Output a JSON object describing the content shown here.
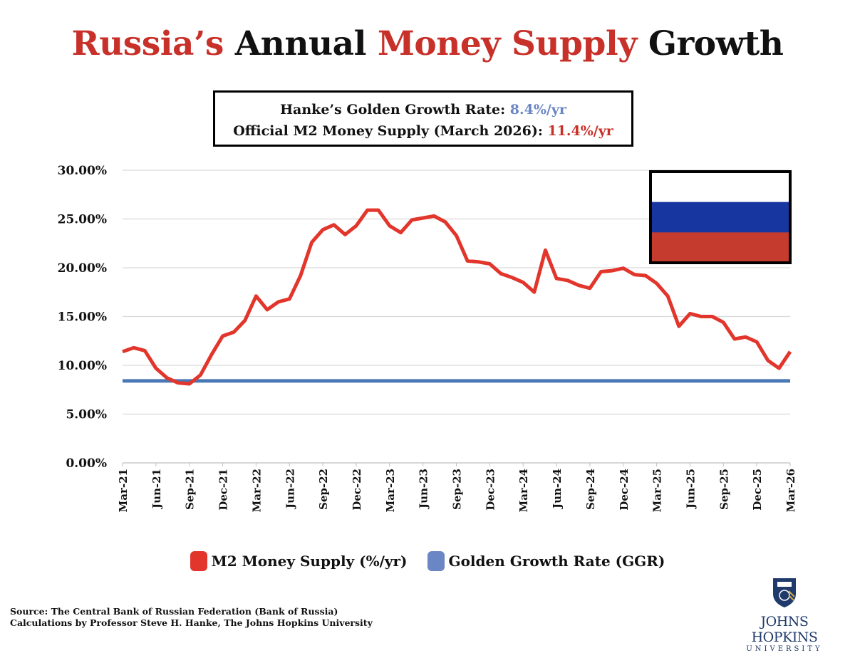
{
  "title": {
    "part1": "Russia’s",
    "part2": " Annual ",
    "part3": "Money Supply",
    "part4": " Growth"
  },
  "infobox": {
    "line1_label": "Hanke’s Golden Growth Rate: ",
    "line1_value": "8.4%/yr",
    "line2_label": "Official M2 Money Supply (March 2026): ",
    "line2_value": "11.4%/yr"
  },
  "colors": {
    "m2": "#e2352b",
    "ggr": "#4a78b5",
    "legend_ggr": "#6b86c4",
    "title_red": "#c8302a",
    "flag_white": "#ffffff",
    "flag_blue": "#1736a0",
    "flag_red": "#c53b2e"
  },
  "flag": "russia-flag",
  "chart_data": {
    "type": "line",
    "ylim": [
      0,
      30
    ],
    "yticks": [
      "0.00%",
      "5.00%",
      "10.00%",
      "15.00%",
      "20.00%",
      "25.00%",
      "30.00%"
    ],
    "ytick_values": [
      0,
      5,
      10,
      15,
      20,
      25,
      30
    ],
    "grid": true,
    "legend_placement": "bottom",
    "xticks": [
      "Mar-21",
      "Jun-21",
      "Sep-21",
      "Dec-21",
      "Mar-22",
      "Jun-22",
      "Sep-22",
      "Dec-22",
      "Mar-23",
      "Jun-23",
      "Sep-23",
      "Dec-23",
      "Mar-24",
      "Jun-24",
      "Sep-24",
      "Dec-24",
      "Mar-25",
      "Jun-25",
      "Sep-25",
      "Dec-25",
      "Mar-26"
    ],
    "x_start": "Mar-21",
    "x_end": "Mar-26",
    "frequency": "monthly",
    "series": [
      {
        "name": "M2 Money Supply (%/yr)",
        "values": [
          11.4,
          11.8,
          11.5,
          9.7,
          8.7,
          8.2,
          8.1,
          9.0,
          11.1,
          13.0,
          13.4,
          14.6,
          17.1,
          15.7,
          16.5,
          16.8,
          19.2,
          22.6,
          23.9,
          24.4,
          23.4,
          24.3,
          25.9,
          25.9,
          24.3,
          23.6,
          24.9,
          25.1,
          25.3,
          24.7,
          23.3,
          20.7,
          20.6,
          20.4,
          19.4,
          19.0,
          18.5,
          17.5,
          21.8,
          18.9,
          18.7,
          18.2,
          17.9,
          19.6,
          19.7,
          19.95,
          19.3,
          19.2,
          18.4,
          17.1,
          14.0,
          15.3,
          15.0,
          15.0,
          14.4,
          12.7,
          12.9,
          12.4,
          10.5,
          9.7,
          11.4
        ]
      },
      {
        "name": "Golden Growth Rate (GGR)",
        "constant": 8.4
      }
    ]
  },
  "legend": {
    "m2": "M2 Money Supply (%/yr)",
    "ggr": "Golden Growth Rate (GGR)"
  },
  "source": {
    "line1": "Source: The Central Bank of Russian Federation (Bank of Russia)",
    "line2": "Calculations by Professor Steve H. Hanke, The Johns Hopkins University"
  },
  "logo": {
    "name": "JOHNS HOPKINS",
    "sub": "UNIVERSITY"
  }
}
